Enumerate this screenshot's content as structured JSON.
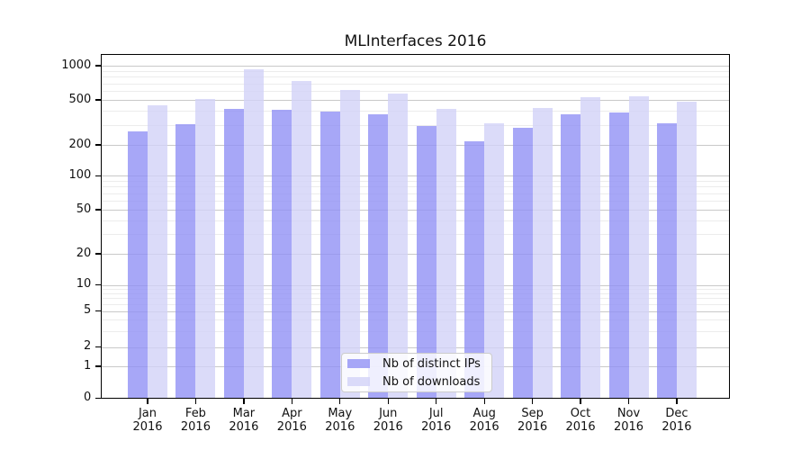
{
  "chart_data": {
    "type": "bar",
    "title": "MLInterfaces 2016",
    "year_label": "2016",
    "categories": [
      "Jan",
      "Feb",
      "Mar",
      "Apr",
      "May",
      "Jun",
      "Jul",
      "Aug",
      "Sep",
      "Oct",
      "Nov",
      "Dec"
    ],
    "series": [
      {
        "name": "Nb of distinct IPs",
        "color": "rgba(145,145,245,0.8)",
        "values": [
          265,
          305,
          420,
          405,
          395,
          375,
          295,
          215,
          285,
          370,
          390,
          310
        ]
      },
      {
        "name": "Nb of downloads",
        "color": "rgba(210,210,248,0.8)",
        "values": [
          450,
          505,
          930,
          730,
          610,
          570,
          415,
          310,
          425,
          530,
          540,
          480
        ]
      }
    ],
    "y_axis": {
      "scale": "log-with-zero",
      "tick_labels": [
        "0",
        "1",
        "2",
        "5",
        "10",
        "20",
        "50",
        "100",
        "200",
        "500",
        "1000"
      ],
      "ticks": [
        0,
        1,
        2,
        5,
        10,
        20,
        50,
        100,
        200,
        500,
        1000
      ],
      "minor_ticks": [
        3,
        4,
        6,
        7,
        8,
        9,
        30,
        40,
        60,
        70,
        80,
        90,
        300,
        400,
        600,
        700,
        800,
        900
      ],
      "range": [
        0,
        1000
      ]
    },
    "legend": {
      "position": "bottom-center"
    },
    "grid": true,
    "colors": {
      "major_gridline": "#c9c9c9",
      "minor_gridline": "#ececec",
      "axis": "#000000",
      "text": "#111111"
    }
  }
}
